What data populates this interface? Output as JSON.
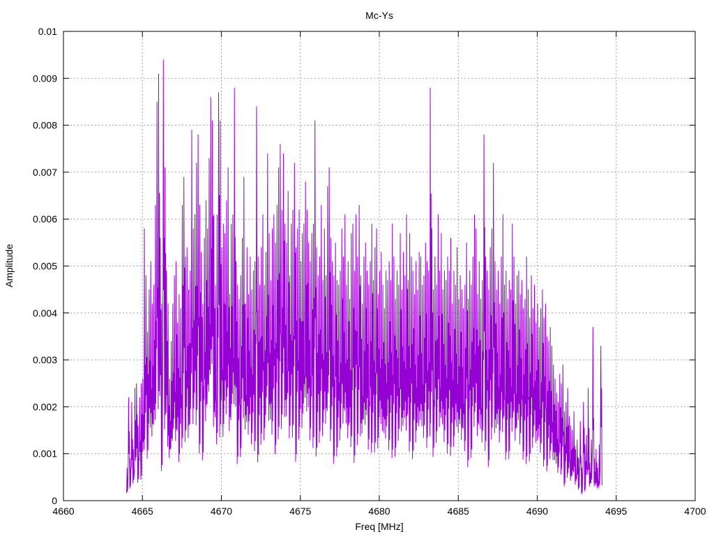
{
  "chart_data": {
    "type": "line",
    "title": "Mc-Ys",
    "xlabel": "Freq [MHz]",
    "ylabel": "Amplitude",
    "xlim": [
      4660,
      4700
    ],
    "ylim": [
      0,
      0.01
    ],
    "xticks": [
      "4660",
      "4665",
      "4670",
      "4675",
      "4680",
      "4685",
      "4690",
      "4695",
      "4700"
    ],
    "yticks": [
      "0",
      "0.001",
      "0.002",
      "0.003",
      "0.004",
      "0.005",
      "0.006",
      "0.007",
      "0.008",
      "0.009",
      "0.01"
    ],
    "grid": true,
    "legend": "none",
    "series_color": "#9400d3",
    "series": [
      {
        "x_start": 4664.0,
        "x_step": 0.1,
        "values": [
          0.0007,
          0.0022,
          0.0009,
          0.0021,
          0.0011,
          0.0024,
          0.0025,
          0.0016,
          0.0022,
          0.0025,
          0.0026,
          0.0058,
          0.0048,
          0.0036,
          0.0045,
          0.0051,
          0.0042,
          0.0046,
          0.0063,
          0.0085,
          0.0091,
          0.0056,
          0.0042,
          0.0094,
          0.0071,
          0.0049,
          0.0042,
          0.0026,
          0.0034,
          0.0042,
          0.0048,
          0.0051,
          0.0038,
          0.0044,
          0.0041,
          0.0063,
          0.0069,
          0.0052,
          0.0054,
          0.0045,
          0.0049,
          0.0079,
          0.0058,
          0.0061,
          0.0072,
          0.0078,
          0.0063,
          0.0053,
          0.0042,
          0.0056,
          0.0064,
          0.0058,
          0.0073,
          0.0086,
          0.0081,
          0.0061,
          0.0046,
          0.0061,
          0.0087,
          0.0081,
          0.0054,
          0.0059,
          0.0057,
          0.0064,
          0.0071,
          0.0044,
          0.0059,
          0.0061,
          0.0088,
          0.0051,
          0.0046,
          0.0043,
          0.0048,
          0.0056,
          0.0069,
          0.0042,
          0.0054,
          0.0044,
          0.0052,
          0.0045,
          0.0049,
          0.0051,
          0.0084,
          0.0052,
          0.0046,
          0.0054,
          0.0061,
          0.0046,
          0.0053,
          0.0074,
          0.0057,
          0.0047,
          0.0058,
          0.0061,
          0.0055,
          0.0063,
          0.0071,
          0.0076,
          0.0062,
          0.0074,
          0.0059,
          0.0055,
          0.0066,
          0.0048,
          0.0059,
          0.0062,
          0.0072,
          0.0054,
          0.0058,
          0.0062,
          0.0051,
          0.0057,
          0.0059,
          0.0068,
          0.0062,
          0.0055,
          0.0051,
          0.0057,
          0.0059,
          0.0081,
          0.0054,
          0.0048,
          0.0052,
          0.0063,
          0.0047,
          0.0058,
          0.0048,
          0.0067,
          0.0071,
          0.0056,
          0.0051,
          0.0048,
          0.0055,
          0.0047,
          0.0046,
          0.0049,
          0.0058,
          0.0052,
          0.0061,
          0.0046,
          0.0051,
          0.0043,
          0.0057,
          0.0059,
          0.0049,
          0.0061,
          0.0052,
          0.0063,
          0.0048,
          0.0042,
          0.0052,
          0.0055,
          0.0049,
          0.0046,
          0.0051,
          0.0059,
          0.0047,
          0.0054,
          0.0058,
          0.0044,
          0.0049,
          0.0053,
          0.0046,
          0.0041,
          0.0049,
          0.0047,
          0.0051,
          0.0047,
          0.0059,
          0.0052,
          0.0043,
          0.0049,
          0.0046,
          0.0057,
          0.0045,
          0.0053,
          0.0048,
          0.0061,
          0.0047,
          0.0057,
          0.0052,
          0.0049,
          0.0044,
          0.0051,
          0.0045,
          0.0053,
          0.0052,
          0.0046,
          0.0048,
          0.0055,
          0.0051,
          0.0049,
          0.0088,
          0.0058,
          0.0045,
          0.0052,
          0.0046,
          0.0061,
          0.0049,
          0.0057,
          0.0045,
          0.0049,
          0.0047,
          0.0052,
          0.0049,
          0.0056,
          0.0042,
          0.0049,
          0.0046,
          0.0054,
          0.0043,
          0.0048,
          0.0045,
          0.0041,
          0.0046,
          0.0055,
          0.0043,
          0.0049,
          0.0046,
          0.0052,
          0.0061,
          0.0058,
          0.0044,
          0.0051,
          0.0043,
          0.0047,
          0.0078,
          0.0052,
          0.0049,
          0.0045,
          0.0054,
          0.0058,
          0.0072,
          0.0051,
          0.0045,
          0.0049,
          0.0042,
          0.0052,
          0.0061,
          0.0046,
          0.0049,
          0.0043,
          0.0047,
          0.0045,
          0.0059,
          0.0052,
          0.0042,
          0.0048,
          0.0049,
          0.0044,
          0.0047,
          0.0041,
          0.0043,
          0.0052,
          0.0045,
          0.0039,
          0.0048,
          0.0041,
          0.0046,
          0.0038,
          0.0042,
          0.0037,
          0.0041,
          0.0045,
          0.0039,
          0.0042,
          0.0035,
          0.0034,
          0.0037,
          0.0033,
          0.0029,
          0.0026,
          0.0023,
          0.0021,
          0.0027,
          0.0025,
          0.0029,
          0.0019,
          0.0021,
          0.0024,
          0.0018,
          0.0016,
          0.0015,
          0.0019,
          0.0011,
          0.0013,
          0.0009,
          0.0017,
          0.0007,
          0.0021,
          0.0012,
          0.0014,
          0.0024,
          0.0008,
          0.0013,
          0.0037,
          0.0009,
          0.0011,
          0.0007,
          0.0012,
          0.0033,
          0.0019
        ]
      }
    ]
  }
}
